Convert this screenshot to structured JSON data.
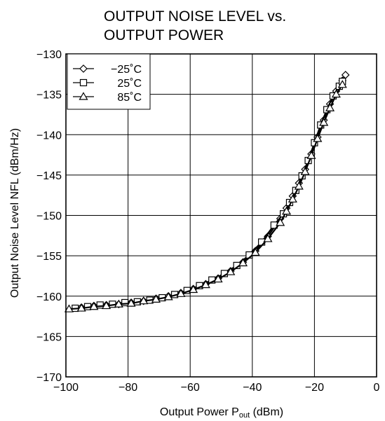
{
  "chart_data": {
    "type": "line",
    "title_line1": "OUTPUT NOISE LEVEL  vs.",
    "title_line2": "OUTPUT POWER",
    "xlabel_prefix": "Output Power  P",
    "xlabel_sub": "out",
    "xlabel_suffix": " (dBm)",
    "ylabel": "Output Noise Level  NFL (dBm/Hz)",
    "xlim": [
      -100,
      0
    ],
    "ylim": [
      -170,
      -130
    ],
    "x_ticks": [
      -100,
      -80,
      -60,
      -40,
      -20,
      0
    ],
    "x_tick_labels": [
      "−100",
      "−80",
      "−60",
      "−40",
      "−20",
      "0"
    ],
    "y_ticks": [
      -130,
      -135,
      -140,
      -145,
      -150,
      -155,
      -160,
      -165,
      -170
    ],
    "y_tick_labels": [
      "−130",
      "−135",
      "−140",
      "−145",
      "−150",
      "−155",
      "−160",
      "−165",
      "−170"
    ],
    "grid": true,
    "legend_position": "top-left",
    "series": [
      {
        "name": "−25˚C",
        "marker": "diamond",
        "x": [
          -95,
          -91,
          -87,
          -83,
          -79,
          -75,
          -71,
          -67,
          -63,
          -59,
          -55,
          -51,
          -47,
          -43,
          -39,
          -35,
          -31,
          -29,
          -27,
          -25,
          -23,
          -21,
          -19,
          -17,
          -15,
          -13,
          -11,
          -10
        ],
        "y": [
          -161.4,
          -161.2,
          -161.1,
          -161.0,
          -160.8,
          -160.6,
          -160.3,
          -160.0,
          -159.6,
          -159.1,
          -158.5,
          -157.8,
          -156.9,
          -155.8,
          -154.4,
          -152.6,
          -150.4,
          -149.1,
          -147.6,
          -146.0,
          -144.3,
          -142.4,
          -140.3,
          -138.2,
          -136.2,
          -134.6,
          -133.3,
          -132.6
        ]
      },
      {
        "name": "25˚C",
        "marker": "square",
        "x": [
          -97,
          -93,
          -89,
          -85,
          -81,
          -77,
          -73,
          -69,
          -65,
          -61,
          -57,
          -53,
          -49,
          -45,
          -41,
          -37,
          -33,
          -30,
          -28,
          -26,
          -24,
          -22,
          -20,
          -18,
          -16,
          -14,
          -12,
          -11
        ],
        "y": [
          -161.5,
          -161.3,
          -161.1,
          -161.0,
          -160.8,
          -160.7,
          -160.5,
          -160.2,
          -159.8,
          -159.3,
          -158.7,
          -158.0,
          -157.2,
          -156.2,
          -154.9,
          -153.3,
          -151.2,
          -149.8,
          -148.4,
          -146.9,
          -145.1,
          -143.2,
          -141.0,
          -138.8,
          -136.9,
          -135.2,
          -134.0,
          -133.4
        ]
      },
      {
        "name": "85˚C",
        "marker": "triangle",
        "x": [
          -99,
          -95,
          -91,
          -87,
          -83,
          -79,
          -75,
          -71,
          -67,
          -63,
          -59,
          -55,
          -51,
          -47,
          -43,
          -39,
          -35,
          -31,
          -29,
          -27,
          -25,
          -23,
          -21,
          -19,
          -17,
          -15,
          -13,
          -11
        ],
        "y": [
          -161.6,
          -161.5,
          -161.3,
          -161.2,
          -161.0,
          -160.9,
          -160.6,
          -160.4,
          -160.1,
          -159.7,
          -159.2,
          -158.6,
          -157.9,
          -157.0,
          -155.9,
          -154.6,
          -152.9,
          -150.9,
          -149.5,
          -148.0,
          -146.4,
          -144.6,
          -142.6,
          -140.5,
          -138.5,
          -136.7,
          -135.0,
          -133.8
        ]
      }
    ]
  }
}
